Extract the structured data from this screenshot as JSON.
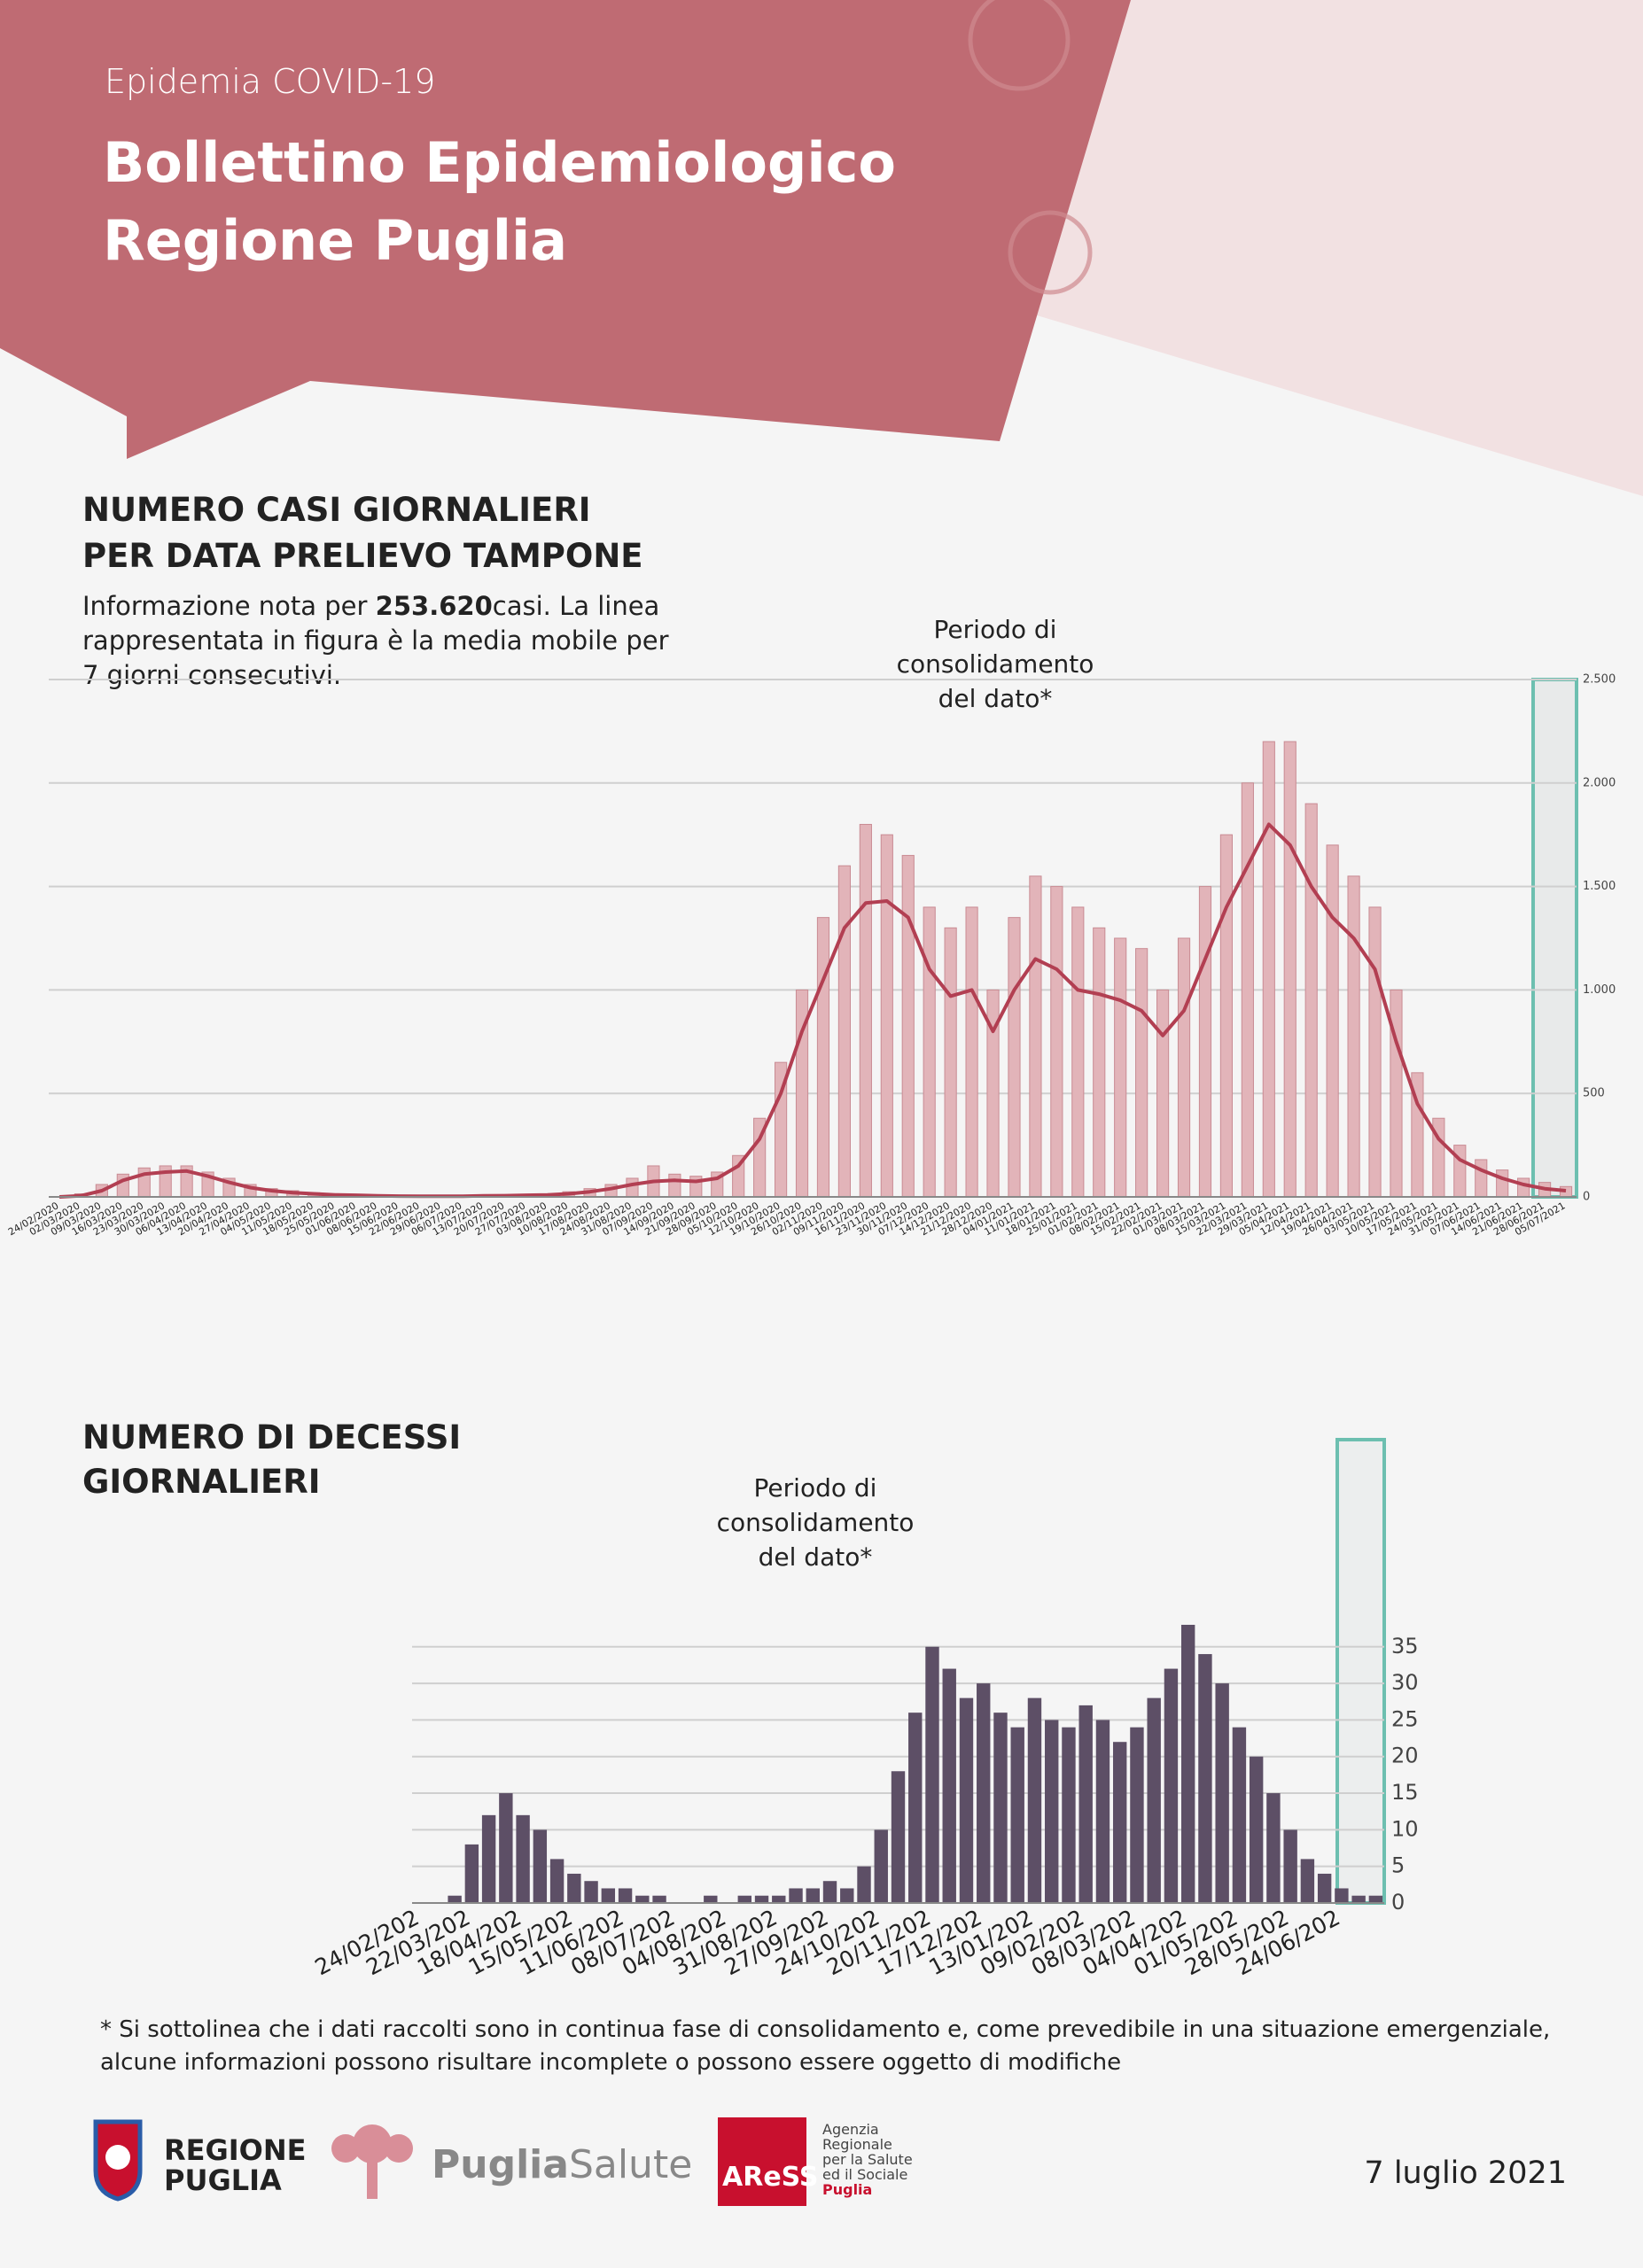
{
  "header": {
    "subtitle": "Epidemia COVID-19",
    "title": [
      "Bollettino Epidemiologico",
      "Regione Puglia"
    ]
  },
  "chart_data": [
    {
      "type": "bar",
      "title": [
        "NUMERO CASI GIORNALIERI",
        "PER DATA PRELIEVO TAMPONE"
      ],
      "description": {
        "before": "Informazione nota per ",
        "highlight": "253.620",
        "after": "casi. La linea rappresentata in figura è la media mobile per 7 giorni consecutivi."
      },
      "annotation": [
        "Periodo di",
        "consolidamento",
        "del dato*"
      ],
      "categories": [
        "24/02/2020",
        "02/03/2020",
        "09/03/2020",
        "16/03/2020",
        "23/03/2020",
        "30/03/2020",
        "06/04/2020",
        "13/04/2020",
        "20/04/2020",
        "27/04/2020",
        "04/05/2020",
        "11/05/2020",
        "18/05/2020",
        "25/05/2020",
        "01/06/2020",
        "08/06/2020",
        "15/06/2020",
        "22/06/2020",
        "29/06/2020",
        "06/07/2020",
        "13/07/2020",
        "20/07/2020",
        "27/07/2020",
        "03/08/2020",
        "10/08/2020",
        "17/08/2020",
        "24/08/2020",
        "31/08/2020",
        "07/09/2020",
        "14/09/2020",
        "21/09/2020",
        "28/09/2020",
        "05/10/2020",
        "12/10/2020",
        "19/10/2020",
        "26/10/2020",
        "02/11/2020",
        "09/11/2020",
        "16/11/2020",
        "23/11/2020",
        "30/11/2020",
        "07/12/2020",
        "14/12/2020",
        "21/12/2020",
        "28/12/2020",
        "04/01/2021",
        "11/01/2021",
        "18/01/2021",
        "25/01/2021",
        "01/02/2021",
        "08/02/2021",
        "15/02/2021",
        "22/02/2021",
        "01/03/2021",
        "08/03/2021",
        "15/03/2021",
        "22/03/2021",
        "29/03/2021",
        "05/04/2021",
        "12/04/2021",
        "19/04/2021",
        "26/04/2021",
        "03/05/2021",
        "10/05/2021",
        "17/05/2021",
        "24/05/2021",
        "31/05/2021",
        "07/06/2021",
        "14/06/2021",
        "21/06/2021",
        "28/06/2021",
        "05/07/2021"
      ],
      "values": [
        2,
        15,
        60,
        110,
        140,
        150,
        150,
        120,
        90,
        60,
        40,
        30,
        20,
        15,
        12,
        8,
        6,
        5,
        5,
        5,
        8,
        10,
        12,
        15,
        25,
        40,
        60,
        90,
        150,
        110,
        100,
        120,
        200,
        380,
        650,
        1000,
        1350,
        1600,
        1800,
        1750,
        1650,
        1400,
        1300,
        1400,
        1000,
        1350,
        1550,
        1500,
        1400,
        1300,
        1250,
        1200,
        1000,
        1250,
        1500,
        1750,
        2000,
        2200,
        2200,
        1900,
        1700,
        1550,
        1400,
        1000,
        600,
        380,
        250,
        180,
        130,
        90,
        70,
        50
      ],
      "moving_average": [
        0,
        5,
        30,
        80,
        110,
        120,
        125,
        100,
        70,
        45,
        30,
        20,
        15,
        10,
        8,
        5,
        4,
        3,
        3,
        3,
        5,
        6,
        8,
        10,
        15,
        25,
        40,
        60,
        75,
        80,
        75,
        90,
        150,
        280,
        500,
        800,
        1050,
        1300,
        1420,
        1430,
        1350,
        1100,
        970,
        1000,
        800,
        1000,
        1150,
        1100,
        1000,
        980,
        950,
        900,
        780,
        900,
        1150,
        1400,
        1600,
        1800,
        1700,
        1500,
        1350,
        1250,
        1100,
        750,
        450,
        280,
        180,
        130,
        90,
        60,
        40,
        30
      ],
      "color": "#e2b4b9",
      "line_color": "#b23f52",
      "ylim": [
        0,
        2500
      ],
      "yticks": [
        0,
        500,
        {
          "value": 1000,
          "label": "1.000"
        },
        {
          "value": 1500,
          "label": "1.500"
        },
        {
          "value": 2000,
          "label": "2.000"
        },
        {
          "value": 2500,
          "label": "2.500"
        }
      ],
      "grid": true
    },
    {
      "type": "bar",
      "title": [
        "NUMERO DI DECESSI",
        "GIORNALIERI"
      ],
      "annotation": [
        "Periodo di",
        "consolidamento",
        "del dato*"
      ],
      "categories": [
        "24/02/202",
        null,
        null,
        "22/03/202",
        null,
        null,
        "18/04/202",
        null,
        null,
        "15/05/202",
        null,
        null,
        "11/06/202",
        null,
        null,
        "08/07/202",
        null,
        null,
        "04/08/202",
        null,
        null,
        "31/08/202",
        null,
        null,
        "27/09/202",
        null,
        null,
        "24/10/202",
        null,
        null,
        "20/11/202",
        null,
        null,
        "17/12/202",
        null,
        null,
        "13/01/202",
        null,
        null,
        "09/02/202",
        null,
        null,
        "08/03/202",
        null,
        null,
        "04/04/202",
        null,
        null,
        "01/05/202",
        null,
        null,
        "28/05/202",
        null,
        null,
        "24/06/202",
        null,
        null
      ],
      "values": [
        0,
        0,
        1,
        8,
        12,
        15,
        12,
        10,
        6,
        4,
        3,
        2,
        2,
        1,
        1,
        0,
        0,
        1,
        0,
        1,
        1,
        1,
        2,
        2,
        3,
        2,
        5,
        10,
        18,
        26,
        35,
        32,
        28,
        30,
        26,
        24,
        28,
        25,
        24,
        27,
        25,
        22,
        24,
        28,
        32,
        38,
        34,
        30,
        24,
        20,
        15,
        10,
        6,
        4,
        2,
        1,
        1
      ],
      "color": "#5d4f66",
      "ylim": [
        0,
        57
      ],
      "yticks": [
        0,
        5,
        10,
        15,
        20,
        25,
        30,
        35
      ],
      "grid": true
    }
  ],
  "footnote": [
    "* Si sottolinea che i dati raccolti sono in continua fase di consolidamento e, come prevedibile in una situazione emergenziale,",
    "alcune informazioni possono risultare incomplete o possono essere oggetto di modifiche"
  ],
  "footer": {
    "regione": [
      "REGIONE",
      "PUGLIA"
    ],
    "puglia_salute": [
      "Puglia",
      "Salute"
    ],
    "aress": "AReSS",
    "aress_desc": [
      "Agenzia",
      "Regionale",
      "per la Salute",
      "ed il Sociale",
      "Puglia"
    ],
    "date": "7 luglio 2021"
  }
}
